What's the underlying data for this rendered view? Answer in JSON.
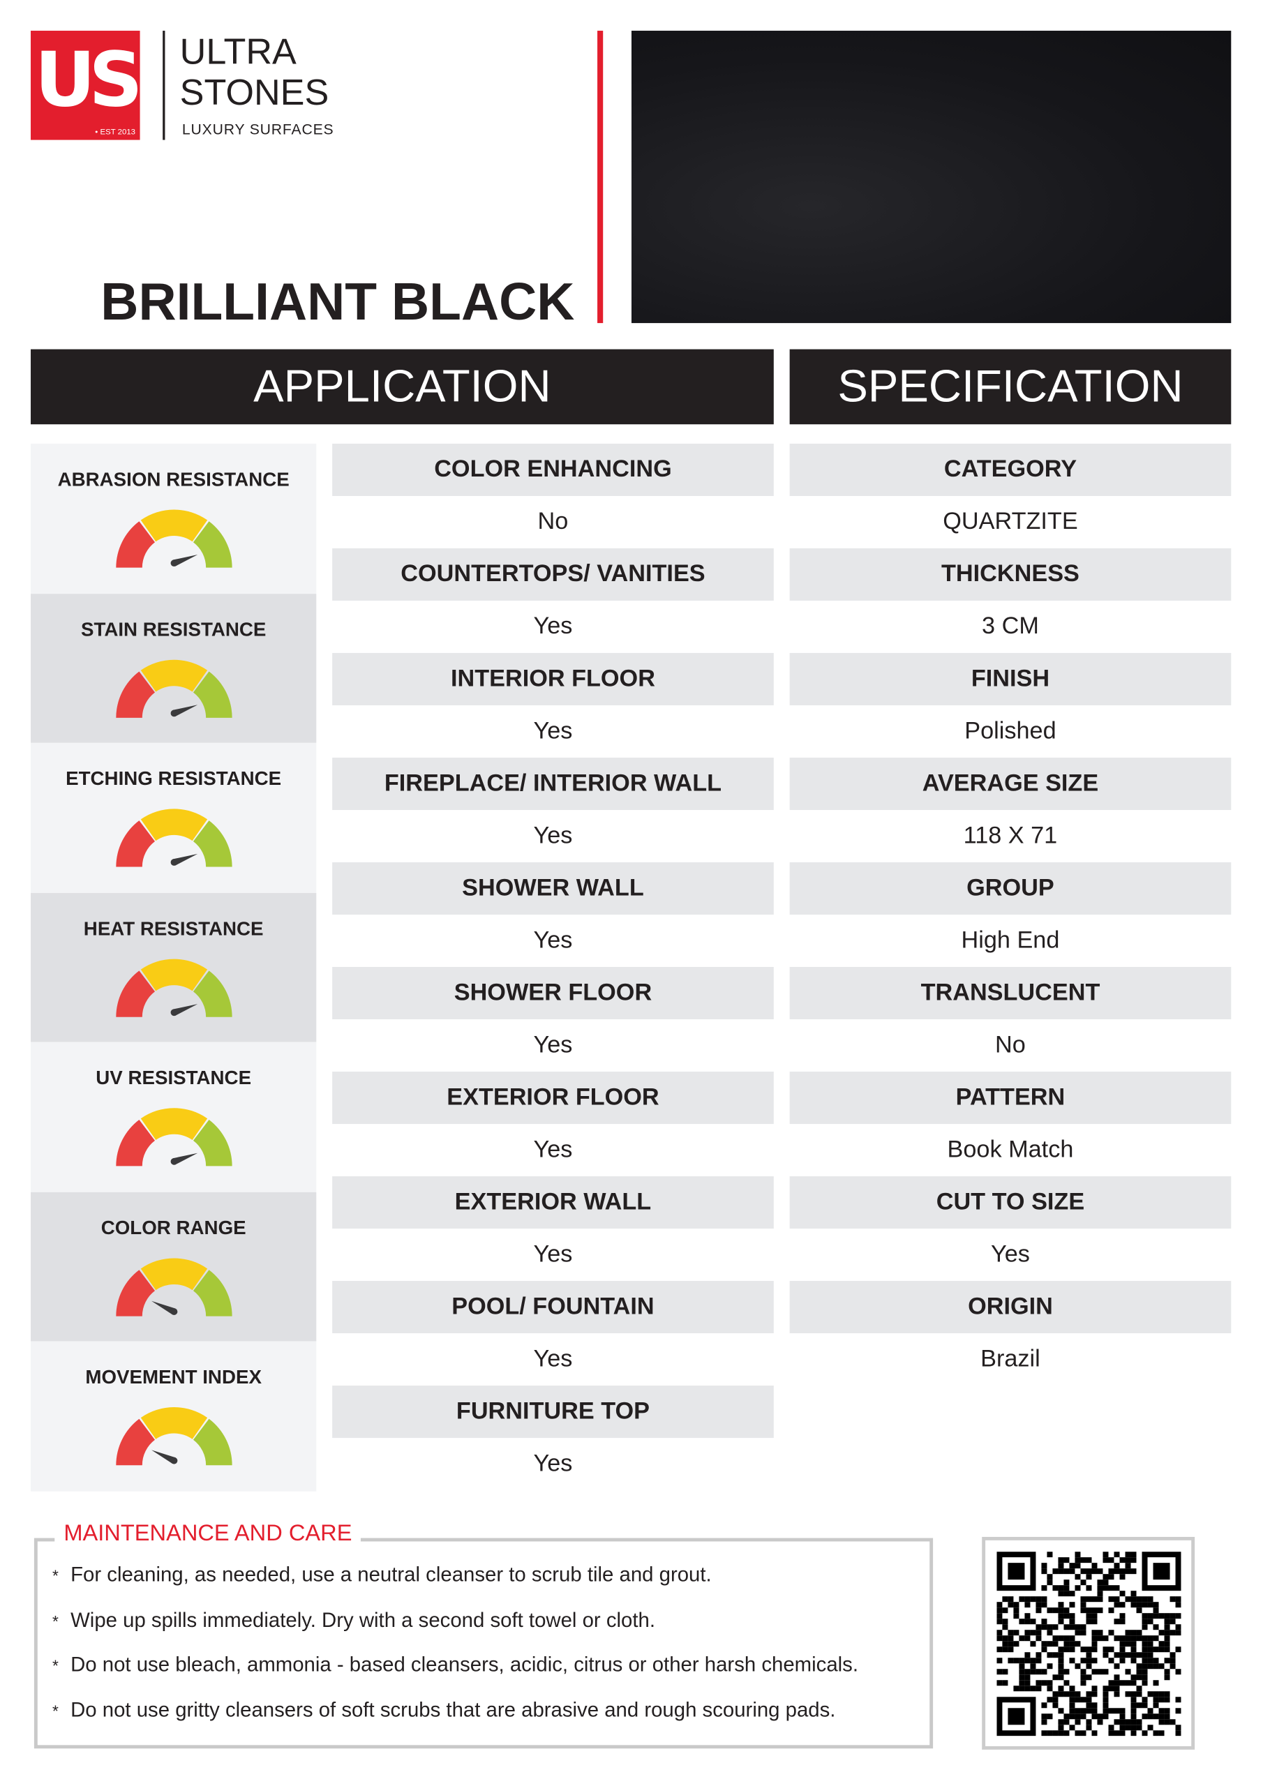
{
  "brand": {
    "logo_monogram": "US",
    "logo_est": "• EST 2013",
    "name_line1": "ULTRA",
    "name_line2": "STONES",
    "tagline": "LUXURY SURFACES",
    "accent": "#e31e2d"
  },
  "product": {
    "title": "BRILLIANT BLACK"
  },
  "headers": {
    "application": "APPLICATION",
    "specification": "SPECIFICATION"
  },
  "ratings": [
    {
      "label": "ABRASION RESISTANCE",
      "level": 0.89
    },
    {
      "label": "STAIN RESISTANCE",
      "level": 0.89
    },
    {
      "label": "ETCHING RESISTANCE",
      "level": 0.89
    },
    {
      "label": "HEAT RESISTANCE",
      "level": 0.89
    },
    {
      "label": "UV RESISTANCE",
      "level": 0.89
    },
    {
      "label": "COLOR RANGE",
      "level": 0.14
    },
    {
      "label": "MOVEMENT INDEX",
      "level": 0.14
    }
  ],
  "gauge_colors": {
    "low": "#e8413f",
    "mid": "#f9cc15",
    "high": "#a6c838",
    "needle": "#3a3a3c"
  },
  "application": [
    {
      "label": "COLOR ENHANCING",
      "value": "No"
    },
    {
      "label": "COUNTERTOPS/ VANITIES",
      "value": "Yes"
    },
    {
      "label": "INTERIOR FLOOR",
      "value": "Yes"
    },
    {
      "label": "FIREPLACE/ INTERIOR WALL",
      "value": "Yes"
    },
    {
      "label": "SHOWER WALL",
      "value": "Yes"
    },
    {
      "label": "SHOWER FLOOR",
      "value": "Yes"
    },
    {
      "label": "EXTERIOR FLOOR",
      "value": "Yes"
    },
    {
      "label": "EXTERIOR WALL",
      "value": "Yes"
    },
    {
      "label": "POOL/ FOUNTAIN",
      "value": "Yes"
    },
    {
      "label": "FURNITURE TOP",
      "value": "Yes"
    }
  ],
  "specification": [
    {
      "label": "CATEGORY",
      "value": "QUARTZITE"
    },
    {
      "label": "THICKNESS",
      "value": "3 CM"
    },
    {
      "label": "FINISH",
      "value": "Polished"
    },
    {
      "label": "AVERAGE SIZE",
      "value": "118 X 71"
    },
    {
      "label": "GROUP",
      "value": "High End"
    },
    {
      "label": "TRANSLUCENT",
      "value": "No"
    },
    {
      "label": "PATTERN",
      "value": "Book Match"
    },
    {
      "label": "CUT TO SIZE",
      "value": "Yes"
    },
    {
      "label": "ORIGIN",
      "value": "Brazil"
    }
  ],
  "maintenance": {
    "title": "MAINTENANCE AND CARE",
    "bullet": "*",
    "items": [
      "For cleaning, as needed, use a neutral cleanser to scrub tile and grout.",
      "Wipe up spills immediately. Dry with a second soft towel or cloth.",
      "Do not use bleach, ammonia - based cleansers, acidic, citrus or other harsh chemicals.",
      "Do not use gritty cleansers of soft scrubs that are abrasive and rough scouring pads."
    ]
  }
}
